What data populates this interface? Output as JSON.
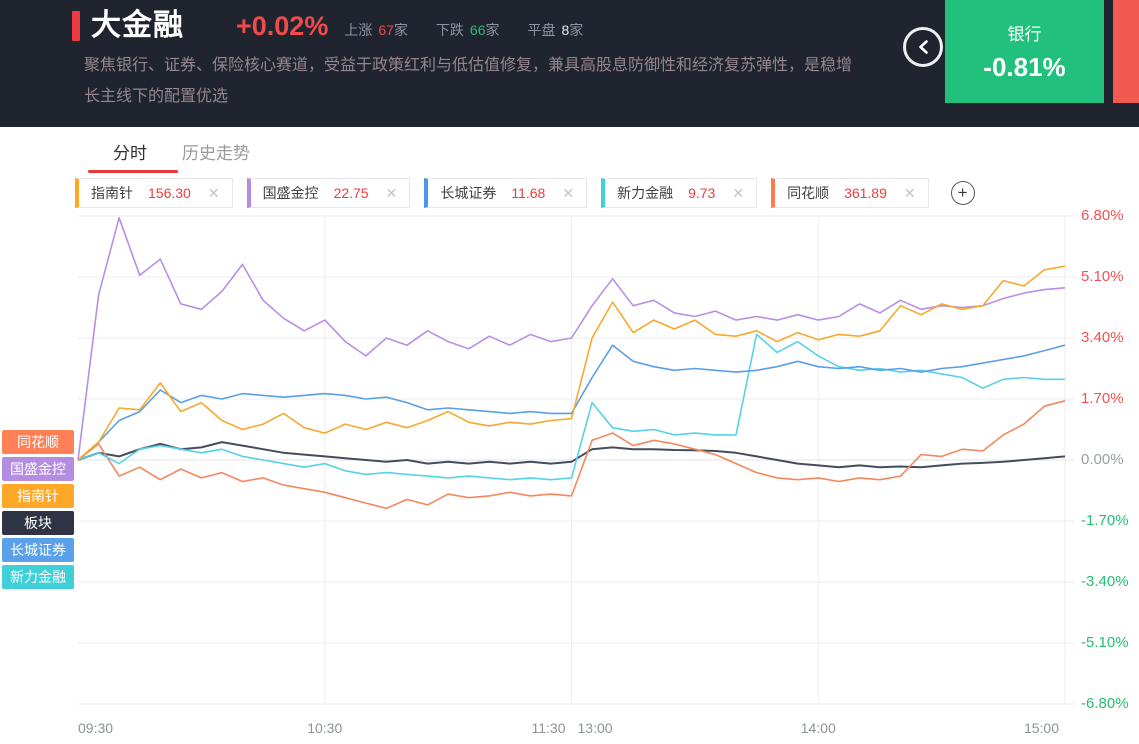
{
  "header": {
    "title": "大金融",
    "change": "+0.02%",
    "accent_bar_color": "#ee3a43",
    "stats": [
      {
        "label": "上涨",
        "value": "67",
        "unit": "家",
        "value_color": "#f04b4b"
      },
      {
        "label": "下跌",
        "value": "66",
        "unit": "家",
        "value_color": "#2abd73"
      },
      {
        "label": "平盘",
        "value": "8",
        "unit": "家",
        "value_color": "#e6e9ef"
      }
    ],
    "description": "聚焦银行、证券、保险核心赛道，受益于政策红利与低估值修复，兼具高股息防御性和经济复苏弹性，是稳增长主线下的配置优选",
    "prev_sector_card": {
      "name": "银行",
      "change": "-0.81%",
      "bg": "#21c17d"
    },
    "next_sector_card_bg": "#f05a50"
  },
  "tabs": [
    {
      "label": "分时",
      "active": true
    },
    {
      "label": "历史走势",
      "active": false
    }
  ],
  "tab_underline_color": "#e4393c",
  "chips": [
    {
      "name": "指南针",
      "value": "156.30",
      "accent": "#ffa726"
    },
    {
      "name": "国盛金控",
      "value": "22.75",
      "accent": "#b48ce0"
    },
    {
      "name": "长城证券",
      "value": "11.68",
      "accent": "#4a99e9"
    },
    {
      "name": "新力金融",
      "value": "9.73",
      "accent": "#3fd0d8"
    },
    {
      "name": "同花顺",
      "value": "361.89",
      "accent": "#ff7a4d"
    }
  ],
  "add_button_label": "+",
  "left_tags": [
    {
      "label": "同花顺",
      "color": "#ff8057"
    },
    {
      "label": "国盛金控",
      "color": "#b48ce0"
    },
    {
      "label": "指南针",
      "color": "#ffa726"
    },
    {
      "label": "板块",
      "color": "#2e3444"
    },
    {
      "label": "长城证券",
      "color": "#5aa0ea"
    },
    {
      "label": "新力金融",
      "color": "#3fcfd6"
    }
  ],
  "chart_data": {
    "type": "line",
    "title": "大金融板块分时涨跌幅对比",
    "x_unit": "minutes since 09:30, session break 11:30/13:00 at minute 120",
    "interval_minutes": 5,
    "ylim": [
      -6.8,
      6.8
    ],
    "grid": true,
    "y_axis_colors": {
      "positive": "#f25252",
      "zero": "#9aa0a6",
      "negative": "#26bd73"
    },
    "y_ticks": [
      {
        "label": "6.80%",
        "value": 6.8
      },
      {
        "label": "5.10%",
        "value": 5.1
      },
      {
        "label": "3.40%",
        "value": 3.4
      },
      {
        "label": "1.70%",
        "value": 1.7
      },
      {
        "label": "0.00%",
        "value": 0
      },
      {
        "label": "-1.70%",
        "value": -1.7
      },
      {
        "label": "-3.40%",
        "value": -3.4
      },
      {
        "label": "-5.10%",
        "value": -5.1
      },
      {
        "label": "-6.80%",
        "value": -6.8
      }
    ],
    "x_ticks": [
      {
        "label": "09:30",
        "minute": 0,
        "align": "left"
      },
      {
        "label": "10:30",
        "minute": 60,
        "align": "center"
      },
      {
        "label": "11:30",
        "minute": 120,
        "align": "right"
      },
      {
        "label": "13:00",
        "minute": 120,
        "align": "left"
      },
      {
        "label": "14:00",
        "minute": 180,
        "align": "center"
      },
      {
        "label": "15:00",
        "minute": 240,
        "align": "right"
      }
    ],
    "grid_minutes": [
      60,
      120,
      180,
      240
    ],
    "t": [
      0,
      5,
      10,
      15,
      20,
      25,
      30,
      35,
      40,
      45,
      50,
      55,
      60,
      65,
      70,
      75,
      80,
      85,
      90,
      95,
      100,
      105,
      110,
      115,
      120,
      125,
      130,
      135,
      140,
      145,
      150,
      155,
      160,
      165,
      170,
      175,
      180,
      185,
      190,
      195,
      200,
      205,
      210,
      215,
      220,
      225,
      230,
      235,
      240
    ],
    "series": [
      {
        "name": "板块",
        "color": "#454c5c",
        "width": 2,
        "values": [
          0,
          0.2,
          0.1,
          0.3,
          0.45,
          0.3,
          0.35,
          0.5,
          0.4,
          0.3,
          0.2,
          0.15,
          0.1,
          0.05,
          0,
          -0.05,
          0,
          -0.1,
          -0.05,
          -0.1,
          -0.05,
          -0.1,
          -0.05,
          -0.1,
          -0.05,
          0.3,
          0.35,
          0.3,
          0.3,
          0.28,
          0.27,
          0.25,
          0.2,
          0.1,
          0,
          -0.1,
          -0.15,
          -0.2,
          -0.15,
          -0.2,
          -0.18,
          -0.2,
          -0.15,
          -0.1,
          -0.08,
          -0.05,
          0,
          0.05,
          0.1
        ]
      },
      {
        "name": "同花顺",
        "color": "#f5875f",
        "width": 1.6,
        "values": [
          0,
          0.45,
          -0.45,
          -0.2,
          -0.55,
          -0.25,
          -0.5,
          -0.35,
          -0.6,
          -0.5,
          -0.7,
          -0.8,
          -0.9,
          -1.05,
          -1.2,
          -1.35,
          -1.1,
          -1.25,
          -0.95,
          -1.05,
          -1,
          -0.9,
          -1,
          -0.95,
          -1,
          0.55,
          0.75,
          0.4,
          0.55,
          0.45,
          0.3,
          0.15,
          -0.1,
          -0.35,
          -0.5,
          -0.55,
          -0.5,
          -0.6,
          -0.5,
          -0.55,
          -0.45,
          0.15,
          0.1,
          0.3,
          0.25,
          0.7,
          1,
          1.5,
          1.65
        ]
      },
      {
        "name": "新力金融",
        "color": "#55d2e8",
        "width": 1.6,
        "values": [
          0,
          0.2,
          -0.1,
          0.3,
          0.4,
          0.3,
          0.2,
          0.3,
          0.1,
          0,
          -0.1,
          -0.2,
          -0.1,
          -0.3,
          -0.4,
          -0.35,
          -0.4,
          -0.45,
          -0.5,
          -0.45,
          -0.5,
          -0.55,
          -0.5,
          -0.55,
          -0.5,
          1.6,
          0.9,
          0.8,
          0.85,
          0.7,
          0.75,
          0.7,
          0.7,
          3.5,
          3,
          3.3,
          2.9,
          2.6,
          2.5,
          2.55,
          2.45,
          2.5,
          2.4,
          2.3,
          2,
          2.25,
          2.3,
          2.25,
          2.25
        ]
      },
      {
        "name": "长城证券",
        "color": "#5b9ee8",
        "width": 1.6,
        "values": [
          0,
          0.5,
          1.1,
          1.35,
          1.95,
          1.6,
          1.8,
          1.7,
          1.85,
          1.8,
          1.75,
          1.8,
          1.85,
          1.8,
          1.7,
          1.75,
          1.6,
          1.4,
          1.45,
          1.4,
          1.35,
          1.3,
          1.35,
          1.3,
          1.3,
          2.3,
          3.2,
          2.75,
          2.6,
          2.5,
          2.55,
          2.5,
          2.45,
          2.5,
          2.6,
          2.75,
          2.6,
          2.55,
          2.6,
          2.5,
          2.55,
          2.45,
          2.55,
          2.6,
          2.7,
          2.8,
          2.9,
          3.05,
          3.2
        ]
      },
      {
        "name": "国盛金控",
        "color": "#b88fe4",
        "width": 1.6,
        "values": [
          0,
          4.6,
          6.75,
          5.15,
          5.6,
          4.35,
          4.2,
          4.7,
          5.45,
          4.45,
          3.95,
          3.6,
          3.9,
          3.3,
          2.9,
          3.4,
          3.2,
          3.6,
          3.3,
          3.1,
          3.45,
          3.2,
          3.5,
          3.3,
          3.4,
          4.3,
          5.05,
          4.3,
          4.45,
          4.1,
          4,
          4.15,
          3.9,
          4,
          3.9,
          4.05,
          3.9,
          4,
          4.35,
          4.1,
          4.45,
          4.2,
          4.3,
          4.25,
          4.3,
          4.5,
          4.65,
          4.75,
          4.8
        ]
      },
      {
        "name": "指南针",
        "color": "#f7a82e",
        "width": 1.6,
        "values": [
          0,
          0.5,
          1.45,
          1.4,
          2.15,
          1.35,
          1.6,
          1.1,
          0.85,
          1,
          1.3,
          0.9,
          0.75,
          1,
          0.85,
          1.05,
          0.9,
          1.1,
          1.35,
          1.05,
          0.95,
          1.05,
          1,
          1.1,
          1.15,
          3.4,
          4.4,
          3.55,
          3.9,
          3.65,
          3.9,
          3.5,
          3.45,
          3.6,
          3.3,
          3.55,
          3.35,
          3.5,
          3.45,
          3.6,
          4.3,
          4.05,
          4.35,
          4.2,
          4.3,
          5,
          4.85,
          5.3,
          5.4
        ]
      }
    ]
  }
}
